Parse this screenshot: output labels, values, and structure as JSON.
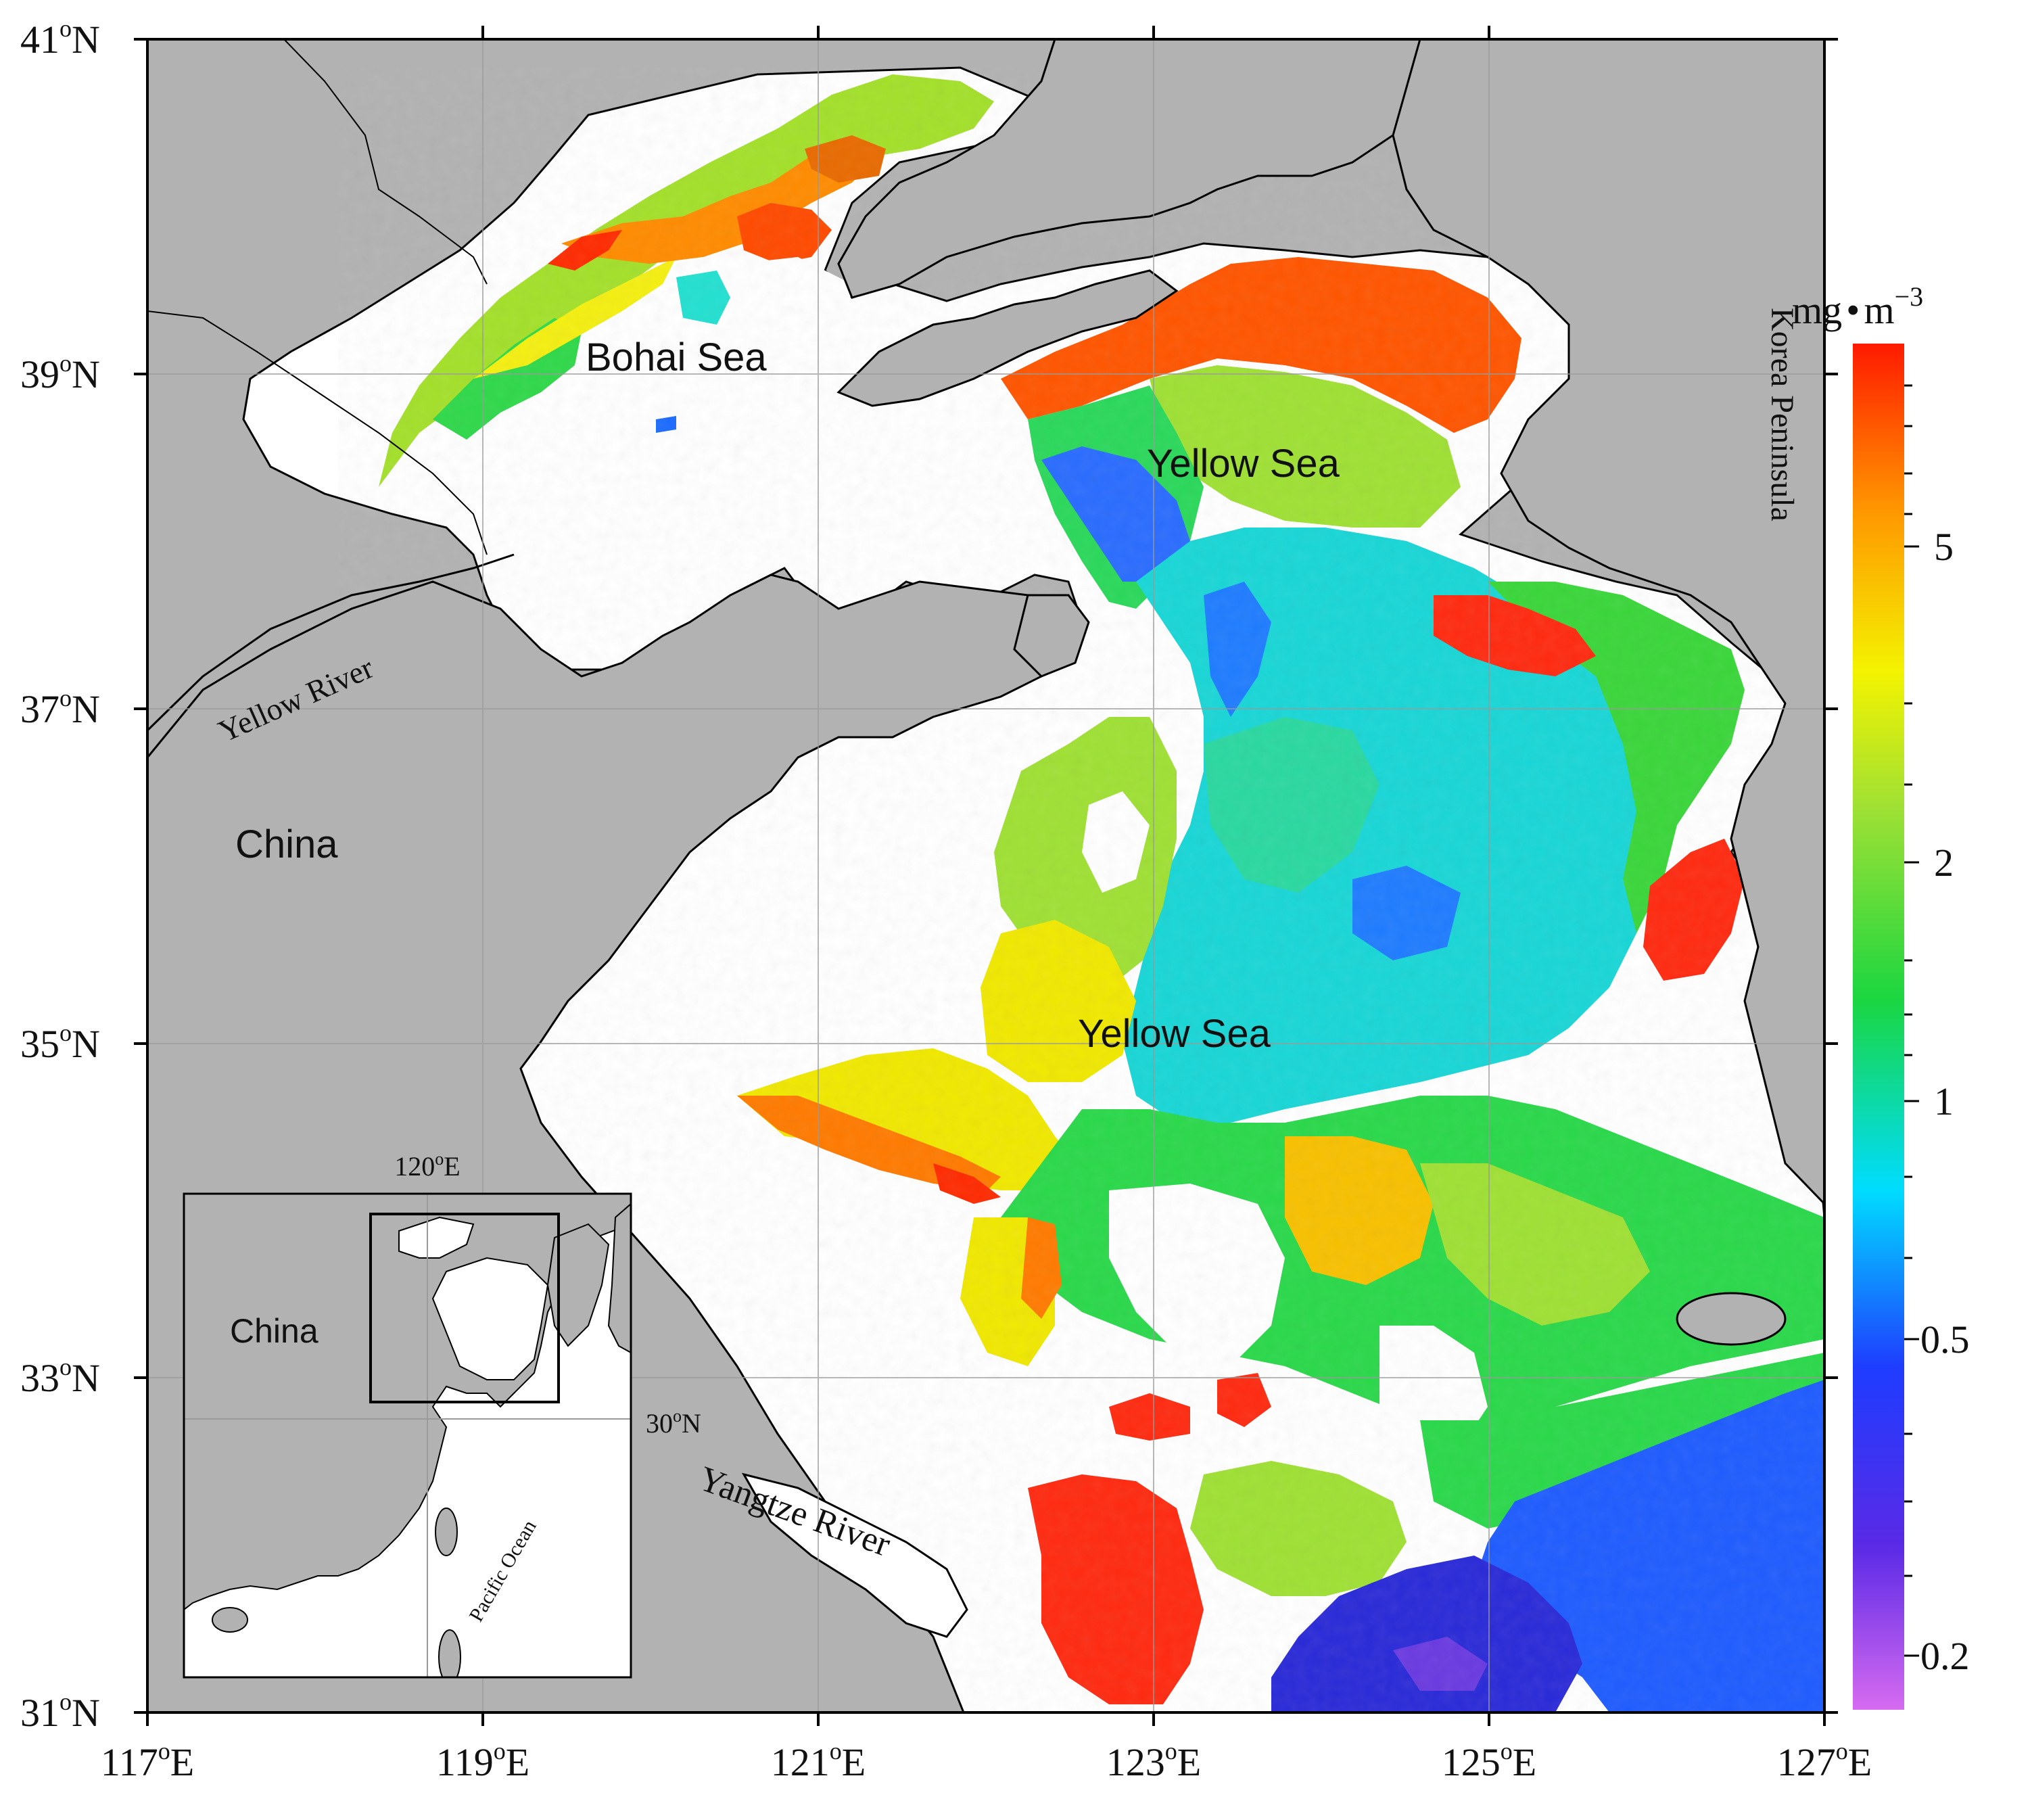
{
  "map": {
    "lat_labels": [
      "41",
      "39",
      "37",
      "35",
      "33",
      "31"
    ],
    "lon_labels": [
      "117",
      "119",
      "121",
      "123",
      "125",
      "127"
    ],
    "lat_suffix": "N",
    "lon_suffix": "E",
    "degree_mark": "o",
    "extent": {
      "lon": [
        117,
        127
      ],
      "lat": [
        31,
        41
      ]
    },
    "labels": {
      "bohai": "Bohai Sea",
      "yellow_sea_north": "Yellow Sea",
      "yellow_sea_south": "Yellow Sea",
      "china": "China",
      "yellow_river": "Yellow River",
      "yangtze_river": "Yangtze River",
      "korea": "Korea Peninsula"
    },
    "colors": {
      "land": "#b2b2b2",
      "water": "#ffffff",
      "coast": "#000000"
    }
  },
  "colorbar": {
    "unit_base": "mg",
    "unit_dot": "•",
    "unit_m": "m",
    "unit_exp": "−3",
    "ticks": [
      "5",
      "2",
      "1",
      "0.5",
      "0.2"
    ],
    "scale": "log",
    "colormap": [
      "#d66bf0",
      "#3a18e6",
      "#1f52ff",
      "#00e0ff",
      "#1bd640",
      "#9fe034",
      "#f3f300",
      "#ff9500",
      "#ff1a00"
    ]
  },
  "inset": {
    "china": "China",
    "lon_label": "120",
    "lat_label": "30",
    "lon_suffix": "E",
    "lat_suffix": "N",
    "pacific": "Pacific Ocean"
  }
}
